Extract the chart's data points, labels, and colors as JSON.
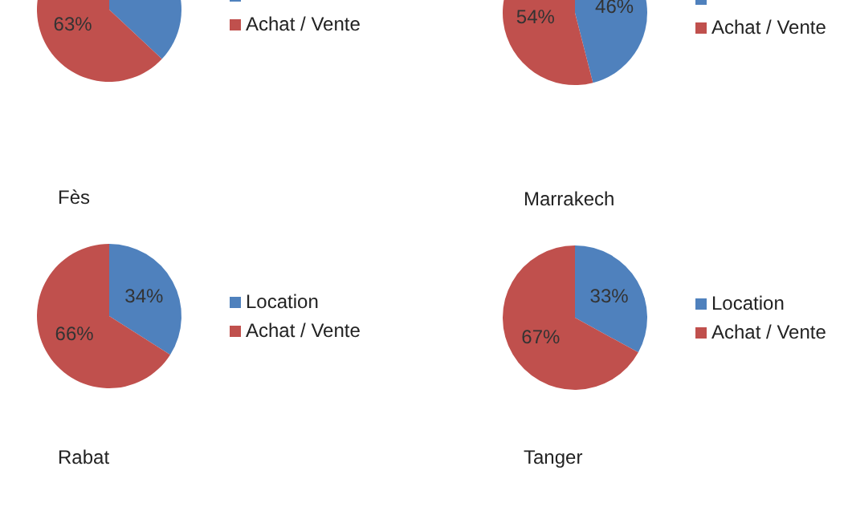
{
  "chart_data": [
    {
      "type": "pie",
      "categories": [
        null,
        "Achat / Vente"
      ],
      "values": [
        37,
        63
      ],
      "colors": [
        "#4f81bd",
        "#c0504d"
      ],
      "value_labels": [
        null,
        "63%"
      ],
      "legend": "right"
    },
    {
      "type": "pie",
      "categories": [
        null,
        "Achat / Vente"
      ],
      "values": [
        46,
        54
      ],
      "colors": [
        "#4f81bd",
        "#c0504d"
      ],
      "value_labels": [
        "46%",
        "54%"
      ],
      "legend": "right"
    },
    {
      "type": "pie",
      "title": "Fès",
      "categories": [
        "Location",
        "Achat / Vente"
      ],
      "values": [
        34,
        66
      ],
      "colors": [
        "#4f81bd",
        "#c0504d"
      ],
      "value_labels": [
        "34%",
        "66%"
      ],
      "legend": "right"
    },
    {
      "type": "pie",
      "title": "Marrakech",
      "categories": [
        "Location",
        "Achat / Vente"
      ],
      "values": [
        33,
        67
      ],
      "colors": [
        "#4f81bd",
        "#c0504d"
      ],
      "value_labels": [
        "33%",
        "67%"
      ],
      "legend": "right"
    },
    {
      "type": "other",
      "title": "Rabat"
    },
    {
      "type": "other",
      "title": "Tanger"
    }
  ]
}
